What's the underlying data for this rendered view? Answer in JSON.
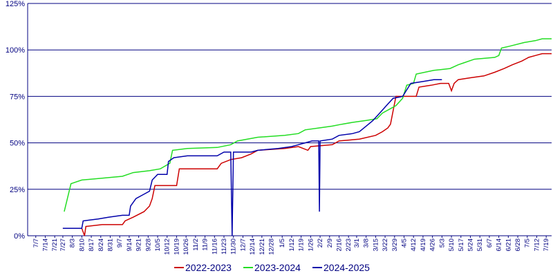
{
  "chart_data": {
    "type": "line",
    "xlim": [
      0,
      387
    ],
    "ylim": [
      0,
      125
    ],
    "yticks": [
      {
        "value": 0,
        "label": "0%"
      },
      {
        "value": 25,
        "label": "25%"
      },
      {
        "value": 50,
        "label": "50%"
      },
      {
        "value": 75,
        "label": "75%"
      },
      {
        "value": 100,
        "label": "100%"
      },
      {
        "value": 125,
        "label": "125%"
      }
    ],
    "xticks": [
      {
        "value": 6,
        "label": "7/7"
      },
      {
        "value": 13,
        "label": "7/14"
      },
      {
        "value": 20,
        "label": "7/21"
      },
      {
        "value": 26,
        "label": "7/27"
      },
      {
        "value": 33,
        "label": "8/3"
      },
      {
        "value": 40,
        "label": "8/10"
      },
      {
        "value": 47,
        "label": "8/17"
      },
      {
        "value": 54,
        "label": "8/24"
      },
      {
        "value": 61,
        "label": "8/31"
      },
      {
        "value": 68,
        "label": "9/7"
      },
      {
        "value": 75,
        "label": "9/14"
      },
      {
        "value": 82,
        "label": "9/21"
      },
      {
        "value": 89,
        "label": "9/28"
      },
      {
        "value": 96,
        "label": "10/5"
      },
      {
        "value": 103,
        "label": "10/12"
      },
      {
        "value": 110,
        "label": "10/19"
      },
      {
        "value": 117,
        "label": "10/26"
      },
      {
        "value": 124,
        "label": "11/2"
      },
      {
        "value": 131,
        "label": "11/9"
      },
      {
        "value": 138,
        "label": "11/16"
      },
      {
        "value": 145,
        "label": "11/23"
      },
      {
        "value": 152,
        "label": "11/30"
      },
      {
        "value": 159,
        "label": "12/7"
      },
      {
        "value": 166,
        "label": "12/14"
      },
      {
        "value": 173,
        "label": "12/21"
      },
      {
        "value": 180,
        "label": "12/28"
      },
      {
        "value": 188,
        "label": "1/5"
      },
      {
        "value": 195,
        "label": "1/12"
      },
      {
        "value": 202,
        "label": "1/19"
      },
      {
        "value": 209,
        "label": "1/26"
      },
      {
        "value": 216,
        "label": "2/2"
      },
      {
        "value": 223,
        "label": "2/9"
      },
      {
        "value": 230,
        "label": "2/16"
      },
      {
        "value": 237,
        "label": "2/23"
      },
      {
        "value": 243,
        "label": "3/1"
      },
      {
        "value": 250,
        "label": "3/8"
      },
      {
        "value": 257,
        "label": "3/15"
      },
      {
        "value": 264,
        "label": "3/22"
      },
      {
        "value": 271,
        "label": "3/29"
      },
      {
        "value": 278,
        "label": "4/5"
      },
      {
        "value": 285,
        "label": "4/12"
      },
      {
        "value": 292,
        "label": "4/19"
      },
      {
        "value": 299,
        "label": "4/26"
      },
      {
        "value": 306,
        "label": "5/3"
      },
      {
        "value": 313,
        "label": "5/10"
      },
      {
        "value": 320,
        "label": "5/17"
      },
      {
        "value": 327,
        "label": "5/24"
      },
      {
        "value": 334,
        "label": "5/31"
      },
      {
        "value": 341,
        "label": "6/7"
      },
      {
        "value": 348,
        "label": "6/14"
      },
      {
        "value": 355,
        "label": "6/21"
      },
      {
        "value": 362,
        "label": "6/28"
      },
      {
        "value": 369,
        "label": "7/5"
      },
      {
        "value": 376,
        "label": "7/12"
      },
      {
        "value": 383,
        "label": "7/19"
      }
    ],
    "grid": true,
    "legend": "bottom",
    "series": [
      {
        "name": "2022-2023",
        "color": "#cc0000",
        "x": [
          26,
          40,
          42,
          43,
          55,
          70,
          72,
          78,
          86,
          90,
          92,
          94,
          110,
          112,
          140,
          143,
          150,
          158,
          165,
          170,
          190,
          200,
          207,
          209,
          225,
          230,
          245,
          257,
          262,
          266,
          268,
          272,
          287,
          289,
          298,
          305,
          311,
          313,
          315,
          318,
          327,
          337,
          345,
          352,
          358,
          365,
          370,
          375,
          380,
          387
        ],
        "values": [
          4,
          4,
          0,
          5,
          6,
          6,
          8,
          10,
          13,
          16,
          20,
          27,
          27,
          36,
          36,
          39,
          41,
          42,
          44,
          46,
          47,
          48,
          46,
          48,
          49,
          51,
          52,
          54,
          56,
          58,
          60,
          75,
          75,
          80,
          81,
          82,
          82,
          78,
          82,
          84,
          85,
          86,
          88,
          90,
          92,
          94,
          96,
          97,
          98,
          98
        ]
      },
      {
        "name": "2023-2024",
        "color": "#22dd22",
        "x": [
          27,
          32,
          40,
          55,
          70,
          78,
          90,
          98,
          105,
          107,
          118,
          140,
          150,
          155,
          170,
          190,
          200,
          205,
          215,
          225,
          232,
          240,
          250,
          258,
          262,
          267,
          272,
          277,
          280,
          285,
          287,
          300,
          312,
          318,
          322,
          330,
          345,
          348,
          350,
          356,
          367,
          375,
          380,
          387
        ],
        "values": [
          13,
          28,
          30,
          31,
          32,
          34,
          35,
          36,
          39,
          46,
          47,
          47.5,
          49,
          51,
          53,
          54,
          55,
          57,
          58,
          59,
          60,
          61,
          62,
          63,
          66,
          68,
          70,
          74,
          81,
          82,
          87,
          89,
          90,
          92,
          93,
          95,
          96,
          97,
          101,
          102,
          104,
          105,
          106,
          106
        ]
      },
      {
        "name": "2024-2025",
        "color": "#0000aa",
        "x": [
          26,
          40,
          41,
          52,
          60,
          70,
          75,
          76,
          80,
          85,
          90,
          92,
          96,
          103,
          104,
          108,
          118,
          140,
          145,
          150,
          151,
          152,
          165,
          170,
          185,
          195,
          200,
          205,
          210,
          215,
          215.5,
          216,
          225,
          230,
          240,
          245,
          250,
          255,
          260,
          265,
          270,
          277,
          283,
          292,
          300,
          306
        ],
        "values": [
          4,
          4,
          8,
          9,
          10,
          11,
          11,
          16,
          20,
          22,
          24,
          30,
          33,
          33,
          40,
          42,
          43,
          43,
          45,
          45,
          0,
          45,
          45,
          46,
          47,
          48,
          49,
          50,
          51,
          51,
          13,
          51,
          52,
          54,
          55,
          56,
          59,
          62,
          66,
          70,
          74,
          75,
          82,
          83,
          84,
          84
        ]
      }
    ]
  }
}
